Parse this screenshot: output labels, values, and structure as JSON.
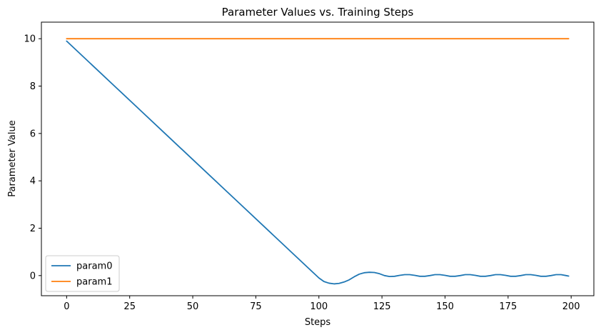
{
  "chart_data": {
    "type": "line",
    "title": "Parameter Values vs. Training Steps",
    "xlabel": "Steps",
    "ylabel": "Parameter Value",
    "xlim": [
      -10,
      209
    ],
    "ylim": [
      -0.85,
      10.7
    ],
    "xticks": [
      0,
      25,
      50,
      75,
      100,
      125,
      150,
      175,
      200
    ],
    "yticks": [
      0,
      2,
      4,
      6,
      8,
      10
    ],
    "grid": false,
    "legend_position": "lower-left",
    "series": [
      {
        "name": "param0",
        "color": "#1f77b4",
        "x": [
          0,
          10,
          20,
          30,
          40,
          50,
          60,
          70,
          80,
          90,
          98,
          100,
          102,
          104,
          106,
          108,
          110,
          112,
          114,
          116,
          118,
          120,
          122,
          124,
          126,
          128,
          130,
          132,
          134,
          136,
          138,
          140,
          142,
          144,
          146,
          148,
          150,
          152,
          154,
          156,
          158,
          160,
          162,
          164,
          166,
          168,
          170,
          172,
          174,
          176,
          178,
          180,
          182,
          184,
          186,
          188,
          190,
          192,
          194,
          196,
          198,
          199
        ],
        "values": [
          9.9,
          8.9,
          7.9,
          6.9,
          5.9,
          4.9,
          3.9,
          2.9,
          1.9,
          0.9,
          0.1,
          -0.1,
          -0.25,
          -0.32,
          -0.35,
          -0.33,
          -0.27,
          -0.18,
          -0.05,
          0.06,
          0.12,
          0.14,
          0.13,
          0.08,
          0.0,
          -0.04,
          -0.03,
          0.01,
          0.04,
          0.04,
          0.01,
          -0.03,
          -0.03,
          0.0,
          0.04,
          0.04,
          0.01,
          -0.03,
          -0.03,
          0.0,
          0.04,
          0.04,
          0.01,
          -0.03,
          -0.03,
          0.0,
          0.04,
          0.04,
          0.01,
          -0.03,
          -0.03,
          0.0,
          0.04,
          0.04,
          0.01,
          -0.03,
          -0.03,
          0.0,
          0.04,
          0.04,
          0.0,
          -0.02
        ]
      },
      {
        "name": "param1",
        "color": "#ff7f0e",
        "x": [
          0,
          199
        ],
        "values": [
          10,
          10
        ]
      }
    ]
  }
}
